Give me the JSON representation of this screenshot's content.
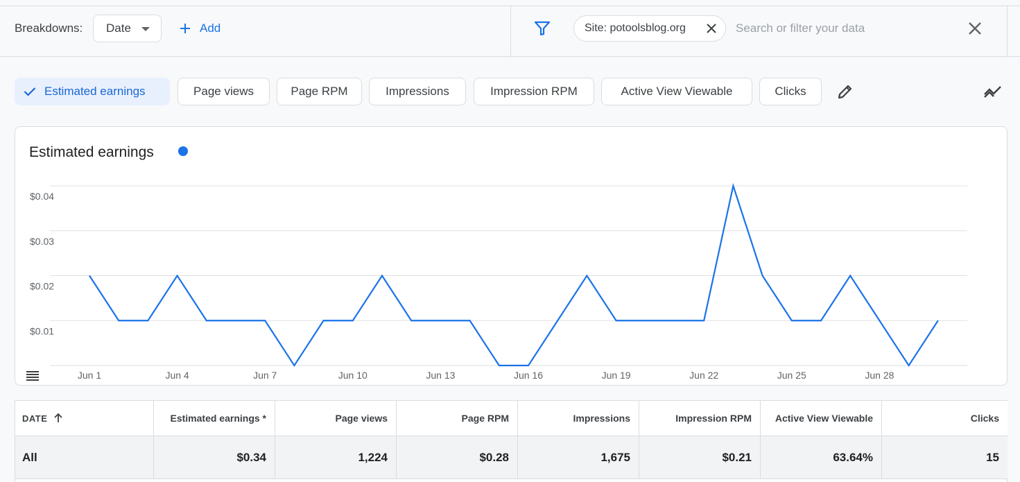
{
  "toolbar": {
    "breakdowns_label": "Breakdowns:",
    "date_select": "Date",
    "add_label": "Add",
    "site_chip": "Site: potoolsblog.org",
    "search_placeholder": "Search or filter your data"
  },
  "metrics": [
    {
      "label": "Estimated earnings",
      "selected": true
    },
    {
      "label": "Page views",
      "selected": false
    },
    {
      "label": "Page RPM",
      "selected": false
    },
    {
      "label": "Impressions",
      "selected": false
    },
    {
      "label": "Impression RPM",
      "selected": false
    },
    {
      "label": "Active View Viewable",
      "selected": false
    },
    {
      "label": "Clicks",
      "selected": false
    }
  ],
  "colors": {
    "accent": "#1a73e8",
    "chip_selected_bg": "#e8f0fe",
    "grid": "#e0e0e0"
  },
  "chart_data": {
    "type": "line",
    "title": "Estimated earnings",
    "x": [
      "Jun 1",
      "Jun 2",
      "Jun 3",
      "Jun 4",
      "Jun 5",
      "Jun 6",
      "Jun 7",
      "Jun 8",
      "Jun 9",
      "Jun 10",
      "Jun 11",
      "Jun 12",
      "Jun 13",
      "Jun 14",
      "Jun 15",
      "Jun 16",
      "Jun 17",
      "Jun 18",
      "Jun 19",
      "Jun 20",
      "Jun 21",
      "Jun 22",
      "Jun 23",
      "Jun 24",
      "Jun 25",
      "Jun 26",
      "Jun 27",
      "Jun 28",
      "Jun 29",
      "Jun 30"
    ],
    "x_tick_labels": [
      "Jun 1",
      "Jun 4",
      "Jun 7",
      "Jun 10",
      "Jun 13",
      "Jun 16",
      "Jun 19",
      "Jun 22",
      "Jun 25",
      "Jun 28"
    ],
    "y_ticks": [
      0.01,
      0.02,
      0.03,
      0.04
    ],
    "y_tick_labels": [
      "$0.01",
      "$0.02",
      "$0.03",
      "$0.04"
    ],
    "ylim": [
      0,
      0.04
    ],
    "series": [
      {
        "name": "Estimated earnings",
        "values": [
          0.02,
          0.01,
          0.01,
          0.02,
          0.01,
          0.01,
          0.01,
          0,
          0.01,
          0.01,
          0.02,
          0.01,
          0.01,
          0.01,
          0,
          0,
          0.01,
          0.02,
          0.01,
          0.01,
          0.01,
          0.01,
          0.04,
          0.02,
          0.01,
          0.01,
          0.02,
          0.01,
          0,
          0.01
        ]
      }
    ],
    "grid": true
  },
  "table": {
    "columns": [
      "DATE",
      "Estimated earnings *",
      "Page views",
      "Page RPM",
      "Impressions",
      "Impression RPM",
      "Active View Viewable",
      "Clicks"
    ],
    "total_row": [
      "All",
      "$0.34",
      "1,224",
      "$0.28",
      "1,675",
      "$0.21",
      "63.64%",
      "15"
    ]
  }
}
